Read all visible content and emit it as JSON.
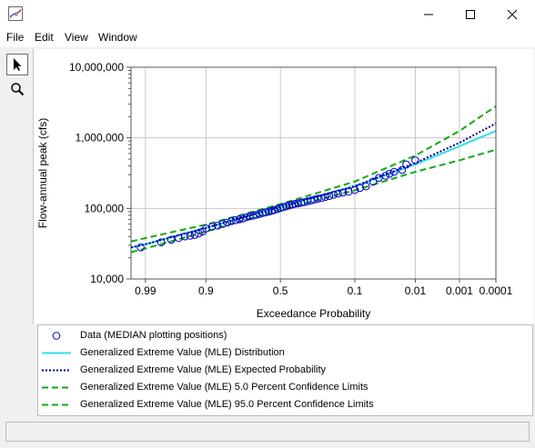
{
  "window": {
    "title": "",
    "controls": {
      "minimize": "minimize-icon",
      "maximize": "maximize-icon",
      "close": "close-icon"
    }
  },
  "menu": [
    "File",
    "Edit",
    "View",
    "Window"
  ],
  "toolbar": {
    "tools": [
      "pointer-arrow-icon",
      "zoom-magnifier-icon"
    ]
  },
  "status": {
    "text": ""
  },
  "chart_data": {
    "type": "line",
    "title": "",
    "xlabel": "Exceedance Probability",
    "ylabel": "Flow-annual peak (cfs)",
    "x_scale": "normal-probability (reversed)",
    "y_scale": "log",
    "xlim": [
      0.995,
      0.0001
    ],
    "ylim": [
      10000,
      10000000
    ],
    "x_ticks": [
      "0.99",
      "0.9",
      "0.5",
      "0.1",
      "0.01",
      "0.001",
      "0.0001"
    ],
    "y_ticks": [
      "10,000",
      "100,000",
      "1,000,000",
      "10,000,000"
    ],
    "grid": true,
    "series": [
      {
        "name": "Data (MEDIAN plotting positions)",
        "style": "marker-circle",
        "color": "#0000cc",
        "x": [
          0.992,
          0.98,
          0.97,
          0.96,
          0.95,
          0.94,
          0.93,
          0.92,
          0.91,
          0.9,
          0.88,
          0.86,
          0.84,
          0.82,
          0.8,
          0.78,
          0.76,
          0.74,
          0.72,
          0.7,
          0.68,
          0.66,
          0.64,
          0.62,
          0.6,
          0.58,
          0.56,
          0.54,
          0.52,
          0.5,
          0.48,
          0.46,
          0.44,
          0.42,
          0.4,
          0.38,
          0.36,
          0.34,
          0.32,
          0.3,
          0.28,
          0.26,
          0.24,
          0.22,
          0.2,
          0.18,
          0.16,
          0.14,
          0.12,
          0.1,
          0.085,
          0.07,
          0.055,
          0.045,
          0.035,
          0.03,
          0.025,
          0.018,
          0.015,
          0.01
        ],
        "y": [
          28000,
          33000,
          36000,
          38000,
          40000,
          41000,
          42000,
          44000,
          47000,
          52000,
          55000,
          57000,
          60000,
          63000,
          66000,
          68000,
          70000,
          72000,
          75000,
          77000,
          79000,
          81000,
          83000,
          86000,
          88000,
          90000,
          92000,
          95000,
          98000,
          101000,
          104000,
          107000,
          110000,
          113000,
          116000,
          118000,
          120000,
          123000,
          126000,
          129000,
          133000,
          137000,
          140000,
          145000,
          150000,
          156000,
          162000,
          168000,
          172000,
          182000,
          195000,
          205000,
          240000,
          270000,
          290000,
          310000,
          330000,
          350000,
          420000,
          480000
        ]
      },
      {
        "name": "Generalized Extreme Value (MLE) Distribution",
        "style": "solid",
        "color": "#33ddee",
        "x": [
          0.995,
          0.99,
          0.9,
          0.5,
          0.1,
          0.01,
          0.001,
          0.0001
        ],
        "y": [
          28000,
          31000,
          53000,
          105000,
          205000,
          420000,
          760000,
          1250000
        ]
      },
      {
        "name": "Generalized Extreme Value (MLE) Expected Probability",
        "style": "dotted",
        "color": "#000080",
        "x": [
          0.995,
          0.99,
          0.9,
          0.5,
          0.1,
          0.01,
          0.001,
          0.0001
        ],
        "y": [
          28000,
          31000,
          53000,
          105000,
          207000,
          440000,
          850000,
          1600000
        ]
      },
      {
        "name": "Generalized Extreme Value (MLE) 5.0 Percent Confidence Limits",
        "style": "dashed",
        "color": "#11aa11",
        "x": [
          0.995,
          0.99,
          0.9,
          0.5,
          0.1,
          0.01,
          0.001,
          0.0001
        ],
        "y": [
          34000,
          38000,
          59000,
          115000,
          240000,
          560000,
          1250000,
          2800000
        ]
      },
      {
        "name": "Generalized Extreme Value (MLE) 95.0 Percent Confidence Limits",
        "style": "dashed",
        "color": "#11aa11",
        "x": [
          0.995,
          0.99,
          0.9,
          0.5,
          0.1,
          0.01,
          0.001,
          0.0001
        ],
        "y": [
          24000,
          27000,
          47000,
          97000,
          180000,
          330000,
          480000,
          680000
        ]
      }
    ],
    "legend_position": "below-plot"
  }
}
